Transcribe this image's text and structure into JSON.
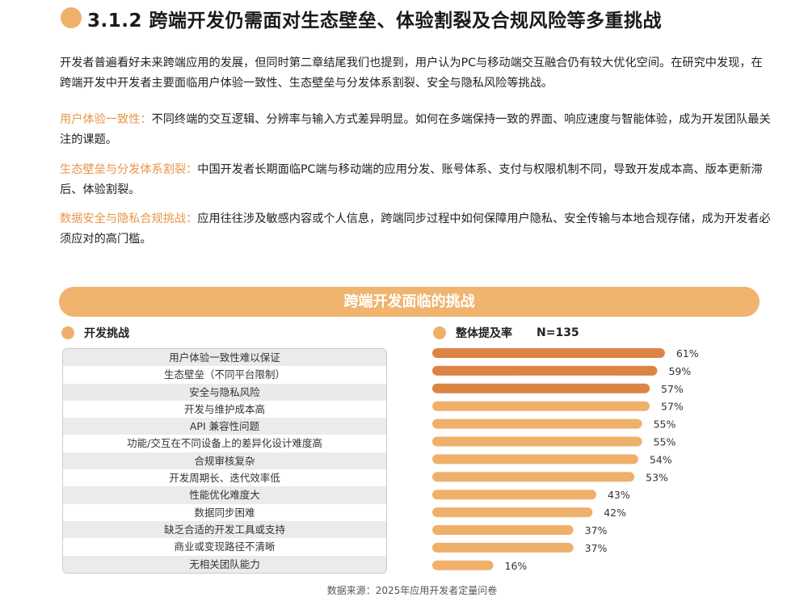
{
  "title": "3.1.2 跨端开发仍需面对生态壁垒、体验割裂及合规风险等多重挑战",
  "intro": "开发者普遍看好未来跨端应用的发展，但同时第二章结尾我们也提到，用户认为PC与移动端交互融合仍有较大优化空间。在研究中发现，在跨端开发中开发者主要面临用户体验一致性、生态壁垒与分发体系割裂、安全与隐私风险等挑战。",
  "points": [
    {
      "label": "用户体验一致性：",
      "text": "不同终端的交互逻辑、分辨率与输入方式差异明显。如何在多端保持一致的界面、响应速度与智能体验，成为开发团队最关注的课题。"
    },
    {
      "label": "生态壁垒与分发体系割裂：",
      "text": "中国开发者长期面临PC端与移动端的应用分发、账号体系、支付与权限机制不同，导致开发成本高、版本更新滞后、体验割裂。"
    },
    {
      "label": "数据安全与隐私合规挑战：",
      "text": "应用往往涉及敏感内容或个人信息，跨端同步过程中如何保障用户隐私、安全传输与本地合规存储，成为开发者必须应对的高门槛。"
    }
  ],
  "colors": {
    "accent": "#EFB06C",
    "highlight": "#DC8443",
    "label": "#E8954A"
  },
  "chart_data": {
    "type": "bar",
    "orientation": "horizontal",
    "title": "跨端开发面临的挑战",
    "category_header": "开发挑战",
    "series_name": "整体提及率",
    "sample": "N=135",
    "categories": [
      "用户体验一致性难以保证",
      "生态壁垒（不同平台限制）",
      "安全与隐私风险",
      "开发与维护成本高",
      "API 兼容性问题",
      "功能/交互在不同设备上的差异化设计难度高",
      "合规审核复杂",
      "开发周期长、迭代效率低",
      "性能优化难度大",
      "数据同步困难",
      "缺乏合适的开发工具或支持",
      "商业或变现路径不清晰",
      "无相关团队能力"
    ],
    "values": [
      61,
      59,
      57,
      57,
      55,
      55,
      54,
      53,
      43,
      42,
      37,
      37,
      16
    ],
    "highlighted_top": 3,
    "value_labels": [
      "61%",
      "59%",
      "57%",
      "57%",
      "55%",
      "55%",
      "54%",
      "53%",
      "43%",
      "42%",
      "37%",
      "37%",
      "16%"
    ],
    "unit": "%",
    "source": "数据来源：2025年应用开发者定量问卷"
  }
}
